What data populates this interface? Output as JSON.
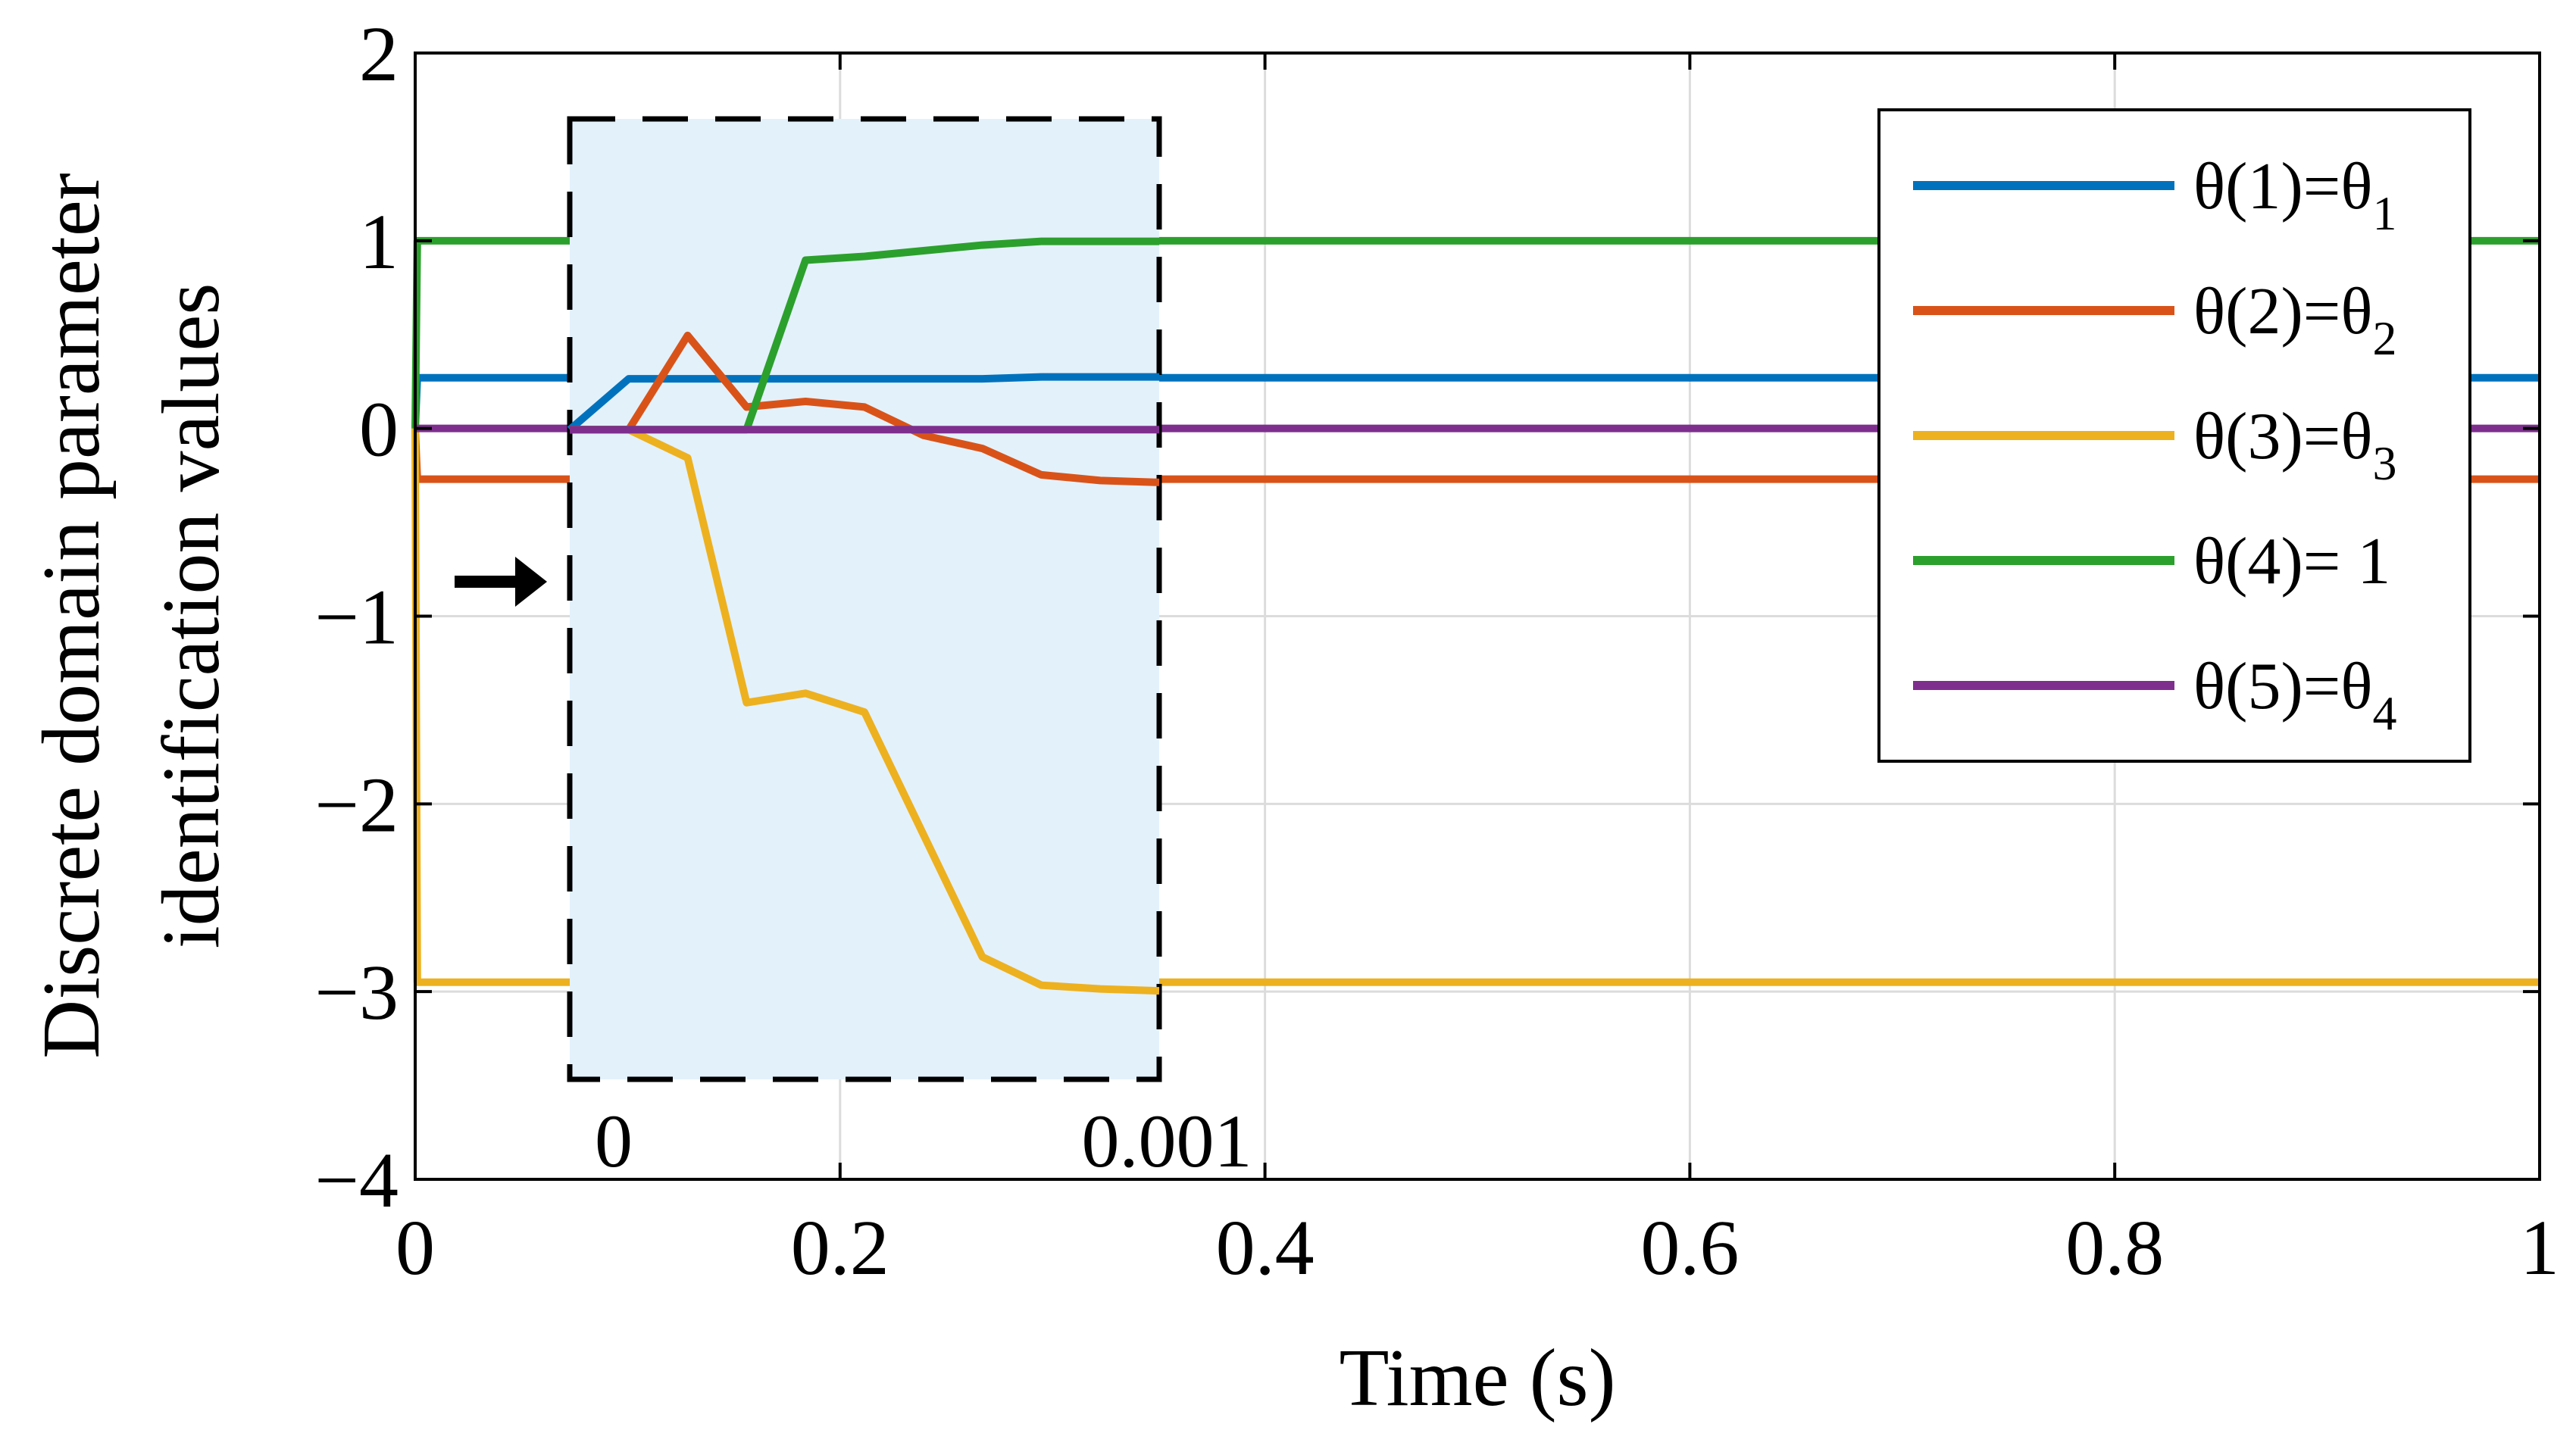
{
  "chart_data": {
    "type": "line",
    "title": "",
    "xlabel": "Time (s)",
    "ylabel_lines": [
      "Discrete domain parameter",
      "identification values"
    ],
    "xlim": [
      0,
      1
    ],
    "ylim": [
      -4,
      2
    ],
    "xticks": [
      0,
      0.2,
      0.4,
      0.6,
      0.8,
      1
    ],
    "xtick_labels": [
      "0",
      "0.2",
      "0.4",
      "0.6",
      "0.8",
      "1"
    ],
    "yticks": [
      2,
      1,
      0,
      -1,
      -2,
      -3,
      -4
    ],
    "ytick_labels": [
      "2",
      "1",
      "0",
      "−1",
      "−2",
      "−3",
      "−4"
    ],
    "grid": true,
    "legend_position": "top-right",
    "series": [
      {
        "name": "θ(1)=θ",
        "subscript": "1",
        "color": "#0072BD",
        "x": [
          0,
          0.001,
          1
        ],
        "y": [
          0,
          0.27,
          0.27
        ]
      },
      {
        "name": "θ(2)=θ",
        "subscript": "2",
        "color": "#D95319",
        "x": [
          0,
          0.001,
          1
        ],
        "y": [
          0,
          -0.27,
          -0.27
        ]
      },
      {
        "name": "θ(3)=θ",
        "subscript": "3",
        "color": "#EDB120",
        "x": [
          0,
          0.001,
          1
        ],
        "y": [
          0,
          -2.95,
          -2.95
        ]
      },
      {
        "name": "θ(4)= 1",
        "subscript": "",
        "color": "#2CA02C",
        "x": [
          0,
          0.001,
          1
        ],
        "y": [
          0,
          1,
          1
        ]
      },
      {
        "name": "θ(5)=θ",
        "subscript": "4",
        "color": "#7E2F8E",
        "x": [
          0,
          0.001,
          1
        ],
        "y": [
          0,
          0,
          0
        ]
      }
    ],
    "inset": {
      "xlim": [
        0,
        0.001
      ],
      "ylim": [
        -3.45,
        1.65
      ],
      "x_labels": [
        "0",
        "0.001"
      ],
      "fill_color": "#E3F1FB",
      "arrow_direction": "right",
      "series": [
        {
          "color": "#0072BD",
          "x": [
            0,
            0.0001,
            0.0002,
            0.0003,
            0.0004,
            0.0005,
            0.0006,
            0.0007,
            0.0008,
            0.0009,
            0.001
          ],
          "y": [
            0,
            0.27,
            0.27,
            0.27,
            0.27,
            0.27,
            0.27,
            0.27,
            0.28,
            0.28,
            0.28
          ]
        },
        {
          "color": "#D95319",
          "x": [
            0,
            0.0001,
            0.0002,
            0.0003,
            0.0004,
            0.0005,
            0.0006,
            0.0007,
            0.0008,
            0.0009,
            0.001
          ],
          "y": [
            0,
            0,
            0.5,
            0.12,
            0.15,
            0.12,
            -0.03,
            -0.1,
            -0.24,
            -0.27,
            -0.28
          ]
        },
        {
          "color": "#EDB120",
          "x": [
            0,
            0.0001,
            0.0002,
            0.0003,
            0.0004,
            0.0005,
            0.0006,
            0.0007,
            0.0008,
            0.0009,
            0.001
          ],
          "y": [
            0,
            0,
            -0.15,
            -1.45,
            -1.4,
            -1.5,
            -2.15,
            -2.8,
            -2.95,
            -2.97,
            -2.98
          ]
        },
        {
          "color": "#2CA02C",
          "x": [
            0,
            0.0001,
            0.0002,
            0.0003,
            0.0004,
            0.0005,
            0.0006,
            0.0007,
            0.0008,
            0.0009,
            0.001
          ],
          "y": [
            0,
            0,
            0,
            0,
            0.9,
            0.92,
            0.95,
            0.98,
            1.0,
            1.0,
            1.0
          ]
        },
        {
          "color": "#7E2F8E",
          "x": [
            0,
            0.001
          ],
          "y": [
            0,
            0
          ]
        }
      ]
    }
  }
}
